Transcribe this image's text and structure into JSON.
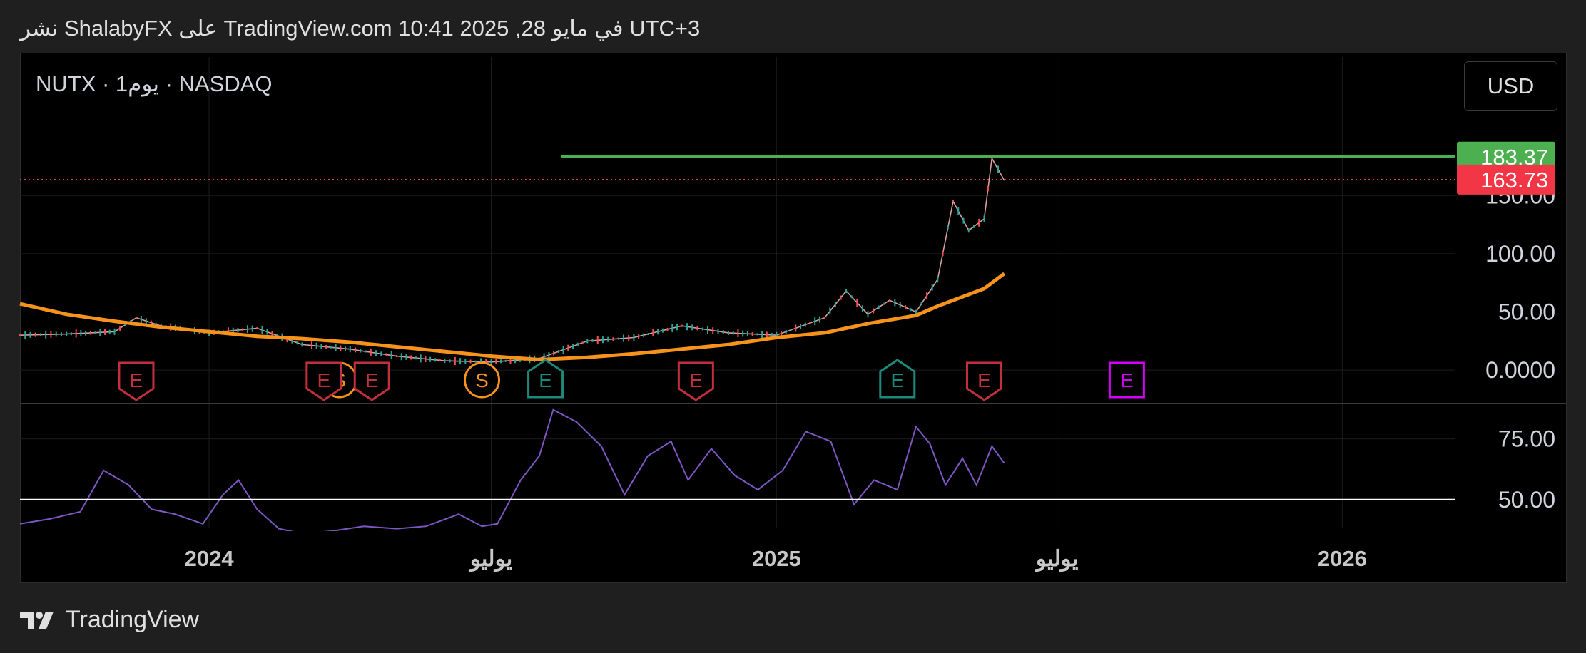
{
  "header": {
    "text": "نشر ShalabyFX على TradingView.com 10:41 2025 ,28 في مايو UTC+3"
  },
  "symbol": {
    "label": "NUTX · 1يوم · NASDAQ"
  },
  "currency": {
    "label": "USD"
  },
  "footer": {
    "brand": "TradingView"
  },
  "colors": {
    "background": "#000000",
    "resistance_line": "#4caf50",
    "ma_line": "#f7931a",
    "rsi_line": "#7e57c2",
    "candle_up": "#26a69a",
    "candle_down": "#ef5350",
    "price_tag_green": "#4caf50",
    "price_tag_red": "#f23645",
    "earnings_red": "#c2303e",
    "earnings_teal": "#1b8a7a",
    "earnings_future": "#d500f9",
    "split_orange": "#f7931a"
  },
  "chart_data": {
    "type": "line",
    "x_range": [
      "2023-09-01",
      "2026-03-15"
    ],
    "x_ticks": [
      "2024",
      "يوليو",
      "2025",
      "يوليو",
      "2026"
    ],
    "price_pane": {
      "y_ticks": [
        "150.00",
        "100.00",
        "50.00",
        "0.0000"
      ],
      "y_range": [
        -25,
        220
      ],
      "resistance": {
        "value": 183.37,
        "start": "2024-08-15"
      },
      "last_price": 163.73,
      "price_tags": [
        {
          "value": "183.37",
          "color": "green"
        },
        {
          "value": "163.73",
          "color": "red"
        }
      ],
      "series": [
        {
          "kind": "price",
          "x": [
            "2023-09-01",
            "2023-10-01",
            "2023-11-01",
            "2023-11-15",
            "2023-12-01",
            "2024-01-01",
            "2024-02-01",
            "2024-03-01",
            "2024-04-01",
            "2024-05-01",
            "2024-06-01",
            "2024-07-01",
            "2024-08-01",
            "2024-09-01",
            "2024-10-01",
            "2024-11-01",
            "2024-12-01",
            "2025-01-01",
            "2025-02-01",
            "2025-02-15",
            "2025-03-01",
            "2025-03-15",
            "2025-04-01",
            "2025-04-15",
            "2025-04-25",
            "2025-05-05",
            "2025-05-15",
            "2025-05-20",
            "2025-05-28"
          ],
          "values": [
            30,
            31,
            33,
            45,
            38,
            32,
            36,
            22,
            18,
            12,
            8,
            7,
            10,
            25,
            28,
            38,
            32,
            30,
            45,
            68,
            48,
            60,
            50,
            78,
            145,
            120,
            130,
            182,
            163
          ]
        },
        {
          "kind": "moving_average",
          "x": [
            "2023-09-01",
            "2023-10-01",
            "2023-11-01",
            "2023-12-01",
            "2024-01-01",
            "2024-02-01",
            "2024-03-01",
            "2024-04-01",
            "2024-05-01",
            "2024-06-01",
            "2024-07-01",
            "2024-08-01",
            "2024-09-01",
            "2024-10-01",
            "2024-11-01",
            "2024-12-01",
            "2025-01-01",
            "2025-02-01",
            "2025-03-01",
            "2025-04-01",
            "2025-04-15",
            "2025-05-01",
            "2025-05-15",
            "2025-05-28"
          ],
          "values": [
            57,
            48,
            42,
            37,
            33,
            29,
            27,
            24,
            20,
            16,
            12,
            9,
            11,
            14,
            18,
            22,
            28,
            32,
            40,
            47,
            55,
            63,
            70,
            83
          ]
        }
      ]
    },
    "rsi_pane": {
      "y_ticks": [
        "75.00",
        "50.00"
      ],
      "y_range": [
        37,
        89
      ],
      "reference_line": 50,
      "series": {
        "x": [
          "2023-09-01",
          "2023-09-20",
          "2023-10-10",
          "2023-10-25",
          "2023-11-10",
          "2023-11-25",
          "2023-12-10",
          "2023-12-28",
          "2024-01-10",
          "2024-01-20",
          "2024-02-01",
          "2024-02-15",
          "2024-03-01",
          "2024-03-20",
          "2024-04-10",
          "2024-05-01",
          "2024-05-20",
          "2024-06-10",
          "2024-06-25",
          "2024-07-05",
          "2024-07-20",
          "2024-08-01",
          "2024-08-10",
          "2024-08-25",
          "2024-09-10",
          "2024-09-25",
          "2024-10-10",
          "2024-10-25",
          "2024-11-05",
          "2024-11-20",
          "2024-12-05",
          "2024-12-20",
          "2025-01-05",
          "2025-01-20",
          "2025-02-05",
          "2025-02-20",
          "2025-03-05",
          "2025-03-20",
          "2025-04-01",
          "2025-04-10",
          "2025-04-20",
          "2025-05-01",
          "2025-05-10",
          "2025-05-20",
          "2025-05-28"
        ],
        "values": [
          40,
          42,
          45,
          62,
          56,
          46,
          44,
          40,
          52,
          58,
          46,
          38,
          36,
          37,
          39,
          38,
          39,
          44,
          39,
          40,
          58,
          68,
          87,
          82,
          72,
          52,
          68,
          74,
          58,
          71,
          60,
          54,
          62,
          78,
          74,
          48,
          58,
          54,
          80,
          73,
          56,
          67,
          56,
          72,
          65
        ]
      }
    },
    "markers": [
      {
        "date": "2023-11-15",
        "label": "E",
        "kind": "earnings",
        "color": "red"
      },
      {
        "date": "2024-03-25",
        "label": "S",
        "kind": "split",
        "color": "orange"
      },
      {
        "date": "2024-03-15",
        "label": "E",
        "kind": "earnings",
        "color": "red"
      },
      {
        "date": "2024-04-15",
        "label": "E",
        "kind": "earnings",
        "color": "red"
      },
      {
        "date": "2024-06-25",
        "label": "S",
        "kind": "split",
        "color": "orange"
      },
      {
        "date": "2024-08-05",
        "label": "E",
        "kind": "earnings",
        "color": "teal"
      },
      {
        "date": "2024-11-10",
        "label": "E",
        "kind": "earnings",
        "color": "red"
      },
      {
        "date": "2025-03-20",
        "label": "E",
        "kind": "earnings",
        "color": "teal"
      },
      {
        "date": "2025-05-15",
        "label": "E",
        "kind": "earnings",
        "color": "red"
      },
      {
        "date": "2025-08-15",
        "label": "E",
        "kind": "earnings",
        "color": "future"
      }
    ]
  }
}
